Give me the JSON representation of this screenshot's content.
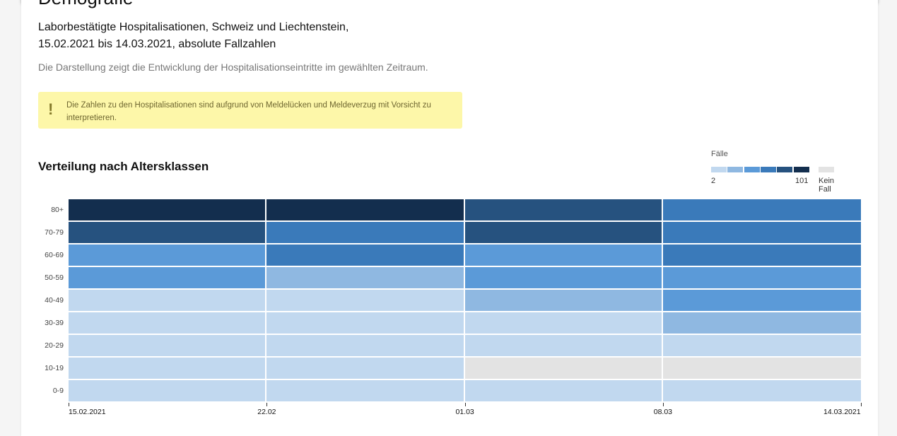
{
  "header": {
    "title": "Demografie",
    "subtitle_line1": "Laborbestätigte Hospitalisationen, Schweiz und Liechtenstein,",
    "subtitle_line2": "15.02.2021 bis 14.03.2021, absolute Fallzahlen",
    "description": "Die Darstellung zeigt die Entwicklung der Hospitalisationseintritte im gewählten Zeitraum."
  },
  "warning": {
    "icon": "exclamation-icon",
    "text": "Die Zahlen zu den Hospitalisationen sind aufgrund von Meldelücken und Meldeverzug mit Vorsicht zu interpretieren."
  },
  "chart_data": {
    "type": "heatmap",
    "title": "Verteilung nach Altersklassen",
    "legend": {
      "title": "Fälle",
      "min": "2",
      "max": "101",
      "none": "Kein Fall",
      "colors": [
        "#c1d8ef",
        "#8fb8e1",
        "#5b9ad8",
        "#3a7aba",
        "#26527f",
        "#132e4e"
      ],
      "none_color": "#e3e3e3"
    },
    "y_categories": [
      "80+",
      "70-79",
      "60-69",
      "50-59",
      "40-49",
      "30-39",
      "20-29",
      "10-19",
      "0-9"
    ],
    "x_ticks": [
      "15.02.2021",
      "22.02",
      "01.03",
      "08.03",
      "14.03.2021"
    ],
    "levels": [
      [
        6,
        6,
        5,
        4
      ],
      [
        5,
        4,
        5,
        4
      ],
      [
        3,
        4,
        3,
        4
      ],
      [
        3,
        2,
        3,
        3
      ],
      [
        1,
        1,
        2,
        3
      ],
      [
        1,
        1,
        1,
        2
      ],
      [
        1,
        1,
        1,
        1
      ],
      [
        1,
        1,
        0,
        0
      ],
      [
        1,
        1,
        1,
        1
      ]
    ],
    "level_note": "color bin 1-6 (0 = Kein Fall)"
  }
}
